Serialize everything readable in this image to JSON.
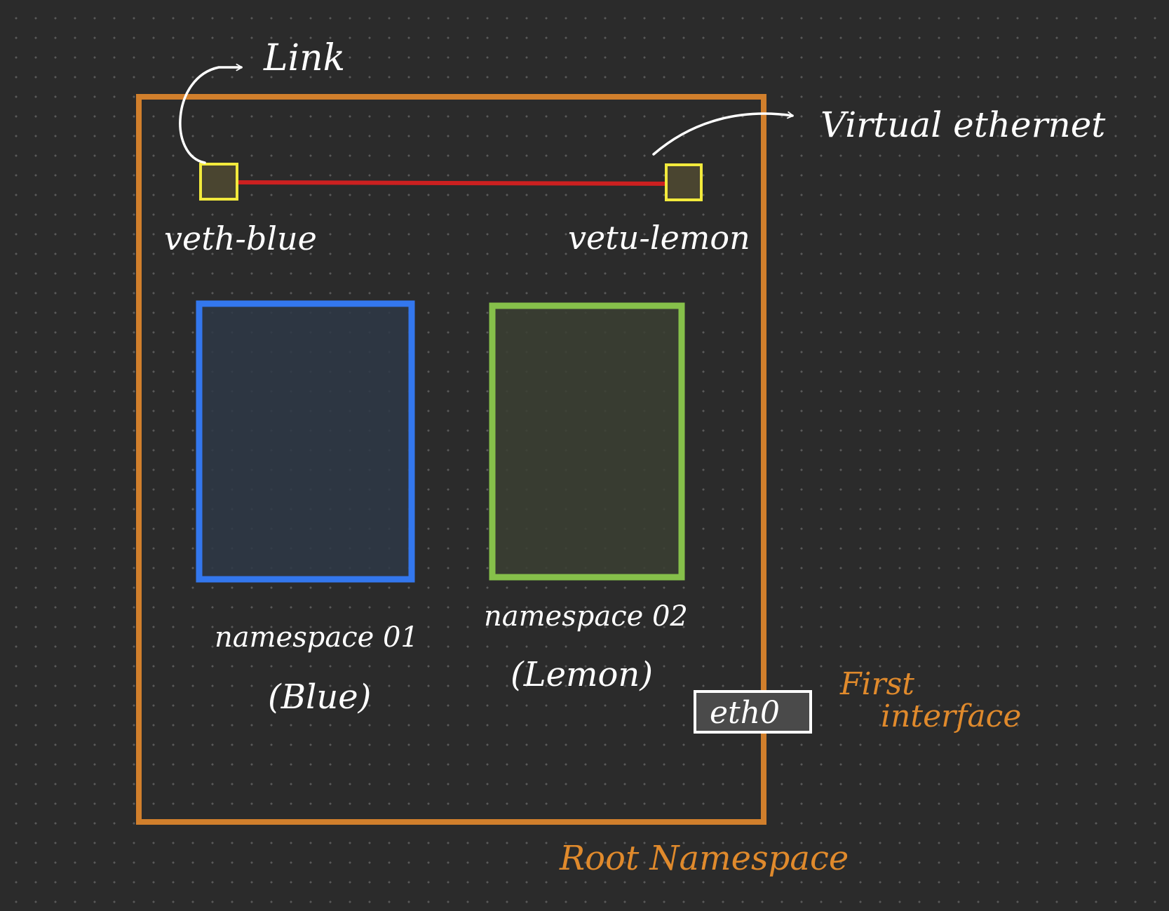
{
  "diagram": {
    "labels": {
      "link": "Link",
      "virtual_ethernet": "Virtual ethernet",
      "veth_blue": "veth-blue",
      "veth_lemon": "vetu-lemon",
      "namespace_01": "namespace 01",
      "namespace_01_sub": "(Blue)",
      "namespace_02": "namespace 02",
      "namespace_02_sub": "(Lemon)",
      "eth0": "eth0",
      "first_interface_line1": "First",
      "first_interface_line2": "interface",
      "root_namespace": "Root Namespace"
    },
    "colors": {
      "background": "#2b2b2b",
      "grid_dot": "#5a5a5a",
      "root_namespace": "#d17f2c",
      "namespace_blue": "#3377ee",
      "namespace_blue_fill": "#2e3846",
      "namespace_lemon": "#86c04a",
      "namespace_lemon_fill": "#3b4032",
      "veth_endpoint": "#f2ea3c",
      "veth_endpoint_fill": "#4a4530",
      "veth_link": "#cc2020",
      "annotation": "#ffffff",
      "orange_text": "#e08a2c",
      "eth0_fill": "#4a4a4a"
    }
  }
}
